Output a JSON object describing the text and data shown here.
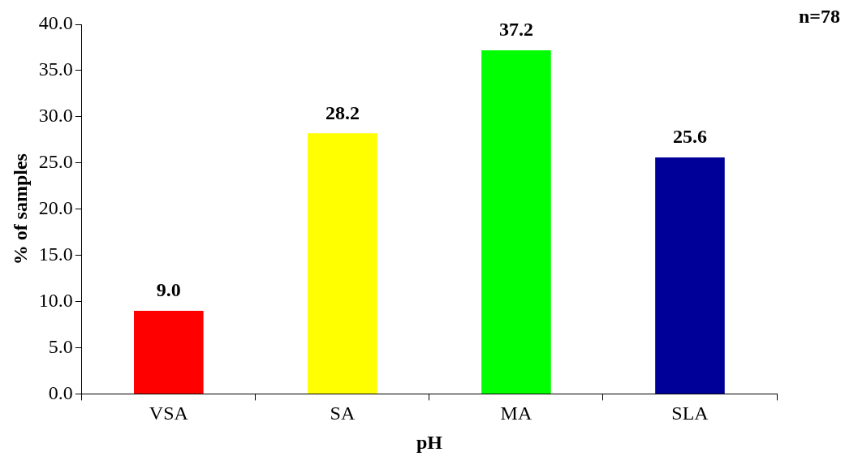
{
  "chart_data": {
    "type": "bar",
    "xlabel": "pH",
    "ylabel": "% of samples",
    "annotations": [
      "n=78"
    ],
    "categories": [
      "VSA",
      "SA",
      "MA",
      "SLA"
    ],
    "values": [
      9.0,
      28.2,
      37.2,
      25.6
    ],
    "colors": [
      "#ff0000",
      "#ffff00",
      "#00ff00",
      "#000099"
    ],
    "value_labels": [
      "9.0",
      "28.2",
      "37.2",
      "25.6"
    ],
    "ylim": [
      0,
      40
    ],
    "yticks": [
      {
        "value": 0,
        "label": "0.0"
      },
      {
        "value": 5,
        "label": "5.0"
      },
      {
        "value": 10,
        "label": "10.0"
      },
      {
        "value": 15,
        "label": "15.0"
      },
      {
        "value": 20,
        "label": "20.0"
      },
      {
        "value": 25,
        "label": "25.0"
      },
      {
        "value": 30,
        "label": "30.0"
      },
      {
        "value": 35,
        "label": "35.0"
      },
      {
        "value": 40,
        "label": "40.0"
      }
    ],
    "grid": false,
    "legend": false
  }
}
